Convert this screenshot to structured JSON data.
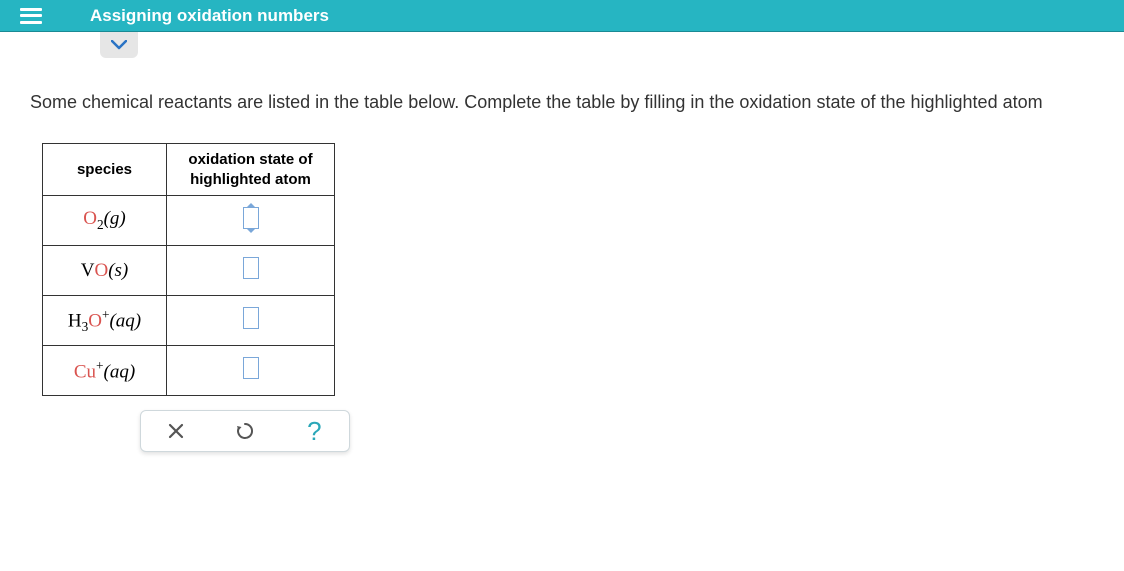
{
  "header": {
    "title": "Assigning oxidation numbers"
  },
  "instruction": "Some chemical reactants are listed in the table below. Complete the table by filling in the oxidation state of the highlighted atom",
  "table": {
    "col_species": "species",
    "col_oxidation_line1": "oxidation state of",
    "col_oxidation_line2": "highlighted atom",
    "rows": [
      {
        "highlighted": "O",
        "rest_html": "<sub>2</sub><span class='state'>(g)</span>",
        "input_active": true
      },
      {
        "prefix": "V",
        "highlighted": "O",
        "rest_html": "<span class='state'>(s)</span>",
        "input_active": false
      },
      {
        "prefix": "H<sub>3</sub>",
        "highlighted": "O",
        "rest_html": "<sup>+</sup><span class='state'>(aq)</span>",
        "input_active": false
      },
      {
        "highlighted": "Cu",
        "rest_html": "<sup>+</sup><span class='state'>(aq)</span>",
        "input_active": false
      }
    ]
  },
  "toolbar": {
    "clear_label": "clear",
    "reset_label": "reset",
    "help_label": "help",
    "help_glyph": "?"
  },
  "colors": {
    "header_bg": "#26b5c2",
    "highlight": "#d9534f",
    "input_border": "#7aa7d9",
    "help_color": "#2aa7b8"
  }
}
